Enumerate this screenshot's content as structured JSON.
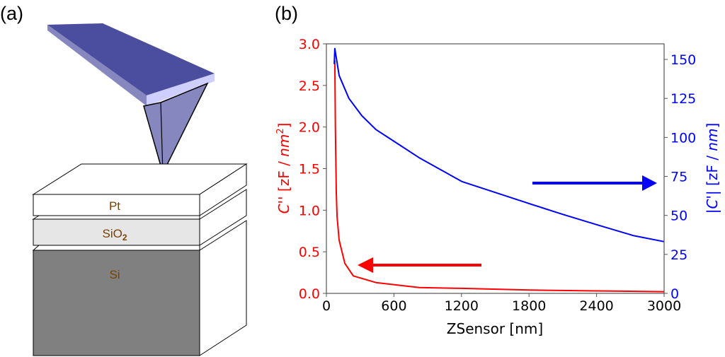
{
  "panel_a": {
    "label": "(a)",
    "layers": [
      {
        "name": "Pt",
        "sub": "",
        "color": "#ffffff"
      },
      {
        "name": "SiO",
        "sub": "2",
        "color": "#e6e6e6"
      },
      {
        "name": "Si",
        "sub": "",
        "color": "#808080"
      }
    ],
    "layer_text_color": "#7a4000",
    "cantilever_colors": {
      "top": "#4b4d9e",
      "side": "#8787c0",
      "edge": "#cfcfff",
      "tip": "#8787c0"
    }
  },
  "panel_b": {
    "label": "(b)"
  },
  "chart_data": {
    "type": "line",
    "xlabel": "ZSensor [nm]",
    "ylabel_left": {
      "pre": "C''",
      "mid": " [zF / ",
      "unit": "nm",
      "sup": "2",
      "post": "]"
    },
    "ylabel_right": {
      "pre": "|C'|",
      "mid": " [zF / ",
      "unit": "nm",
      "post": "]"
    },
    "xlim": [
      0,
      3000
    ],
    "xticks": [
      0,
      600,
      1200,
      1800,
      2400,
      3000
    ],
    "ylim_left": [
      0,
      3.0
    ],
    "yticks_left": [
      "0.0",
      "0.5",
      "1.0",
      "1.5",
      "2.0",
      "2.5",
      "3.0"
    ],
    "ylim_right": [
      0,
      160
    ],
    "yticks_right": [
      0,
      25,
      50,
      75,
      100,
      125,
      150
    ],
    "grid": false,
    "series": [
      {
        "axis": "left",
        "color": "#ff0000",
        "x": [
          75,
          80,
          88,
          95,
          113,
          164,
          239,
          440,
          824,
          1200,
          1800,
          2400,
          3000
        ],
        "y": [
          2.8,
          2.0,
          1.21,
          0.92,
          0.64,
          0.36,
          0.21,
          0.13,
          0.07,
          0.06,
          0.04,
          0.03,
          0.02
        ]
      },
      {
        "axis": "right",
        "color": "#0000ff",
        "x": [
          70,
          75,
          113,
          200,
          314,
          440,
          569,
          824,
          1204,
          1585,
          1839,
          2094,
          2403,
          2730,
          3000
        ],
        "y": [
          147,
          157,
          139.7,
          125,
          114,
          105,
          99,
          87,
          71.7,
          62.7,
          56.7,
          50.8,
          44,
          37,
          33.2
        ]
      }
    ],
    "annotations": [
      {
        "type": "arrow",
        "direction": "left",
        "color": "#ff0000",
        "meaning": "left axis"
      },
      {
        "type": "arrow",
        "direction": "right",
        "color": "#0000ff",
        "meaning": "right axis"
      }
    ]
  }
}
